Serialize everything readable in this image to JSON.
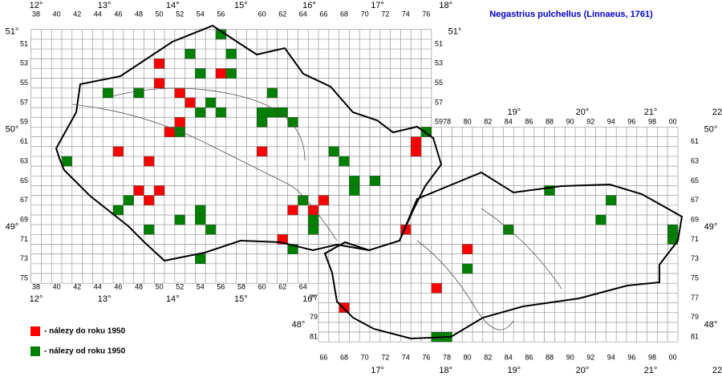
{
  "title": "Negastrius pulchellus (Linnaeus, 1761)",
  "legend": [
    {
      "label": "- nálezy do roku 1950",
      "color": "#ff0000"
    },
    {
      "label": "- nálezy od roku 1950",
      "color": "#008000"
    }
  ],
  "grid": {
    "top_cols": [
      38,
      40,
      42,
      44,
      46,
      48,
      50,
      52,
      54,
      56,
      60,
      62,
      64,
      66,
      68,
      70,
      72,
      74,
      76
    ],
    "bottom_cols_west": [
      38,
      40,
      42,
      44,
      46,
      48,
      50,
      52,
      54,
      56,
      58,
      60,
      62,
      64
    ],
    "top_cols_east": [
      78,
      80,
      82,
      84,
      86,
      88,
      90,
      92,
      94,
      96,
      98,
      {
        "value": 100,
        "label": "00"
      }
    ],
    "bottom_cols_east": [
      66,
      68,
      70,
      72,
      74,
      76,
      78,
      80,
      82,
      84,
      86,
      88,
      90,
      92,
      94,
      96,
      98,
      {
        "value": 100,
        "label": "00"
      }
    ],
    "rows_left": [
      51,
      53,
      55,
      57,
      59,
      61,
      63,
      65,
      67,
      69,
      71,
      73,
      75
    ],
    "rows_mid": [
      51,
      53,
      55,
      57,
      59
    ],
    "rows_east": [
      61,
      63,
      65,
      67,
      69,
      71,
      73,
      75,
      77,
      79,
      81
    ],
    "rows_south": [
      77,
      79,
      81
    ]
  },
  "longitudes_top_west": [
    {
      "value": 12,
      "label": "12°"
    },
    {
      "value": 13,
      "label": "13°"
    },
    {
      "value": 14,
      "label": "14°"
    },
    {
      "value": 15,
      "label": "15°"
    },
    {
      "value": 16,
      "label": "16°"
    },
    {
      "value": 17,
      "label": "17°"
    },
    {
      "value": 18,
      "label": "18°"
    }
  ],
  "longitudes_top_east": [
    {
      "value": 19,
      "label": "19°"
    },
    {
      "value": 20,
      "label": "20°"
    },
    {
      "value": 21,
      "label": "21°"
    },
    {
      "value": 22,
      "label": "22°"
    }
  ],
  "longitudes_mid": [
    {
      "value": 12,
      "label": "12°"
    },
    {
      "value": 13,
      "label": "13°"
    },
    {
      "value": 14,
      "label": "14°"
    },
    {
      "value": 15,
      "label": "15°"
    },
    {
      "value": 16,
      "label": "16°"
    }
  ],
  "longitudes_bottom": [
    {
      "value": 17,
      "label": "17°"
    },
    {
      "value": 18,
      "label": "18°"
    },
    {
      "value": 19,
      "label": "19°"
    },
    {
      "value": 20,
      "label": "20°"
    },
    {
      "value": 21,
      "label": "21°"
    },
    {
      "value": 22,
      "label": "22°"
    }
  ],
  "latitudes_left": [
    {
      "value": 51,
      "label": "51°"
    },
    {
      "value": 50,
      "label": "50°"
    },
    {
      "value": 49,
      "label": "49°"
    },
    {
      "value": 48,
      "label": "48°"
    }
  ],
  "latitudes_right": [
    {
      "value": 51,
      "label": "51°"
    },
    {
      "value": 50,
      "label": "50°"
    },
    {
      "value": 49,
      "label": "49°"
    },
    {
      "value": 48,
      "label": "48°"
    }
  ],
  "records": {
    "before_1950": [
      [
        50,
        53
      ],
      [
        50,
        55
      ],
      [
        52,
        56
      ],
      [
        53,
        57
      ],
      [
        52,
        59
      ],
      [
        51,
        60
      ],
      [
        56,
        54
      ],
      [
        46,
        62
      ],
      [
        49,
        63
      ],
      [
        48,
        66
      ],
      [
        50,
        66
      ],
      [
        49,
        67
      ],
      [
        60,
        62
      ],
      [
        63,
        68
      ],
      [
        65,
        68
      ],
      [
        66,
        67
      ],
      [
        62,
        71
      ],
      [
        75,
        61
      ],
      [
        75,
        62
      ],
      [
        74,
        70
      ],
      [
        80,
        72
      ],
      [
        77,
        76
      ],
      [
        68,
        78
      ]
    ],
    "since_1950": [
      [
        56,
        50
      ],
      [
        53,
        52
      ],
      [
        57,
        52
      ],
      [
        57,
        54
      ],
      [
        54,
        54
      ],
      [
        45,
        56
      ],
      [
        48,
        56
      ],
      [
        55,
        57
      ],
      [
        54,
        58
      ],
      [
        56,
        58
      ],
      [
        52,
        60
      ],
      [
        60,
        58
      ],
      [
        60,
        59
      ],
      [
        61,
        56
      ],
      [
        61,
        58
      ],
      [
        62,
        58
      ],
      [
        63,
        59
      ],
      [
        41,
        63
      ],
      [
        47,
        67
      ],
      [
        46,
        68
      ],
      [
        52,
        69
      ],
      [
        54,
        68
      ],
      [
        54,
        69
      ],
      [
        55,
        70
      ],
      [
        49,
        70
      ],
      [
        54,
        73
      ],
      [
        63,
        72
      ],
      [
        64,
        67
      ],
      [
        65,
        69
      ],
      [
        65,
        70
      ],
      [
        67,
        62
      ],
      [
        68,
        63
      ],
      [
        69,
        65
      ],
      [
        69,
        66
      ],
      [
        71,
        65
      ],
      [
        76,
        60
      ],
      [
        80,
        74
      ],
      [
        84,
        70
      ],
      [
        88,
        66
      ],
      [
        94,
        67
      ],
      [
        93,
        69
      ],
      [
        100,
        70
      ],
      [
        100,
        71
      ],
      [
        77,
        81
      ],
      [
        78,
        81
      ]
    ]
  }
}
